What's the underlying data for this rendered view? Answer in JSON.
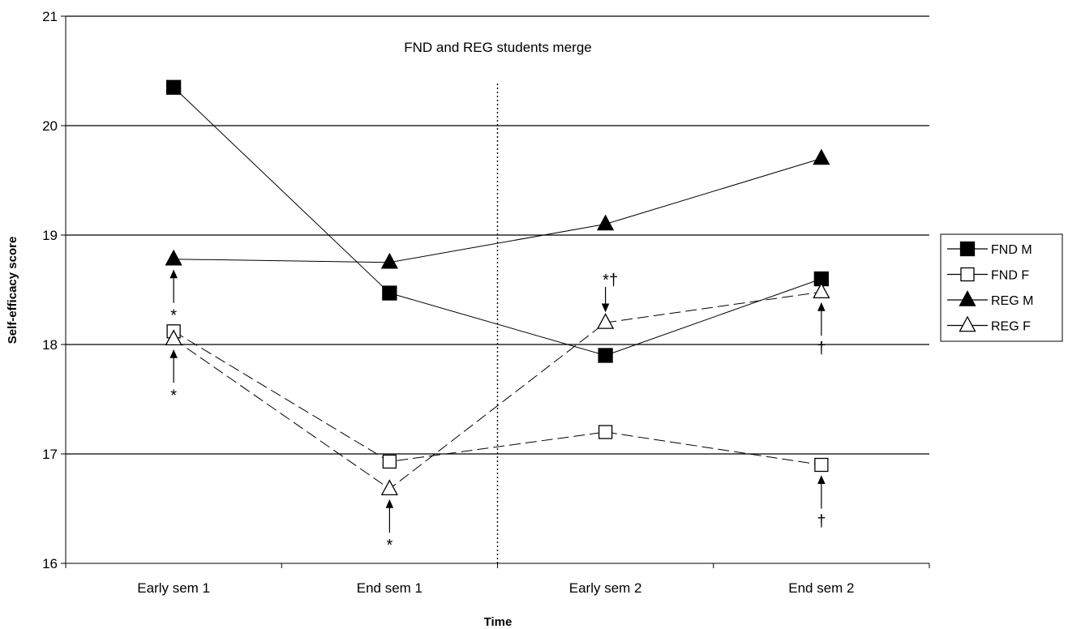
{
  "chart_data": {
    "type": "line",
    "title": "",
    "xlabel": "Time",
    "ylabel": "Self-efficacy score",
    "categories": [
      "Early sem 1",
      "End sem 1",
      "Early sem 2",
      "End sem 2"
    ],
    "ylim": [
      16,
      21
    ],
    "yticks": [
      16,
      17,
      18,
      19,
      20,
      21
    ],
    "grid": "horizontal",
    "legend_position": "right",
    "annotation": "FND and REG students merge",
    "series": [
      {
        "name": "FND M",
        "values": [
          20.35,
          18.47,
          17.9,
          18.6
        ],
        "marker": "square-filled",
        "line": "solid"
      },
      {
        "name": "FND F",
        "values": [
          18.12,
          16.93,
          17.2,
          16.9
        ],
        "marker": "square-open",
        "line": "dashed"
      },
      {
        "name": "REG M",
        "values": [
          18.78,
          18.75,
          19.1,
          19.7
        ],
        "marker": "triangle-filled",
        "line": "solid"
      },
      {
        "name": "REG F",
        "values": [
          18.05,
          16.68,
          18.2,
          18.48
        ],
        "marker": "triangle-open",
        "line": "dashed"
      }
    ],
    "significance_marks": [
      {
        "category": 0,
        "symbol": "*",
        "value": 18.78,
        "direction": "up",
        "above": false
      },
      {
        "category": 0,
        "symbol": "*",
        "value": 18.05,
        "direction": "up",
        "above": false
      },
      {
        "category": 1,
        "symbol": "*",
        "value": 16.68,
        "direction": "up",
        "above": false
      },
      {
        "category": 2,
        "symbol": "*†",
        "value": 18.2,
        "direction": "down",
        "above": true
      },
      {
        "category": 3,
        "symbol": "†",
        "value": 18.48,
        "direction": "up",
        "above": false
      },
      {
        "category": 3,
        "symbol": "†",
        "value": 16.9,
        "direction": "up",
        "above": false
      }
    ]
  }
}
